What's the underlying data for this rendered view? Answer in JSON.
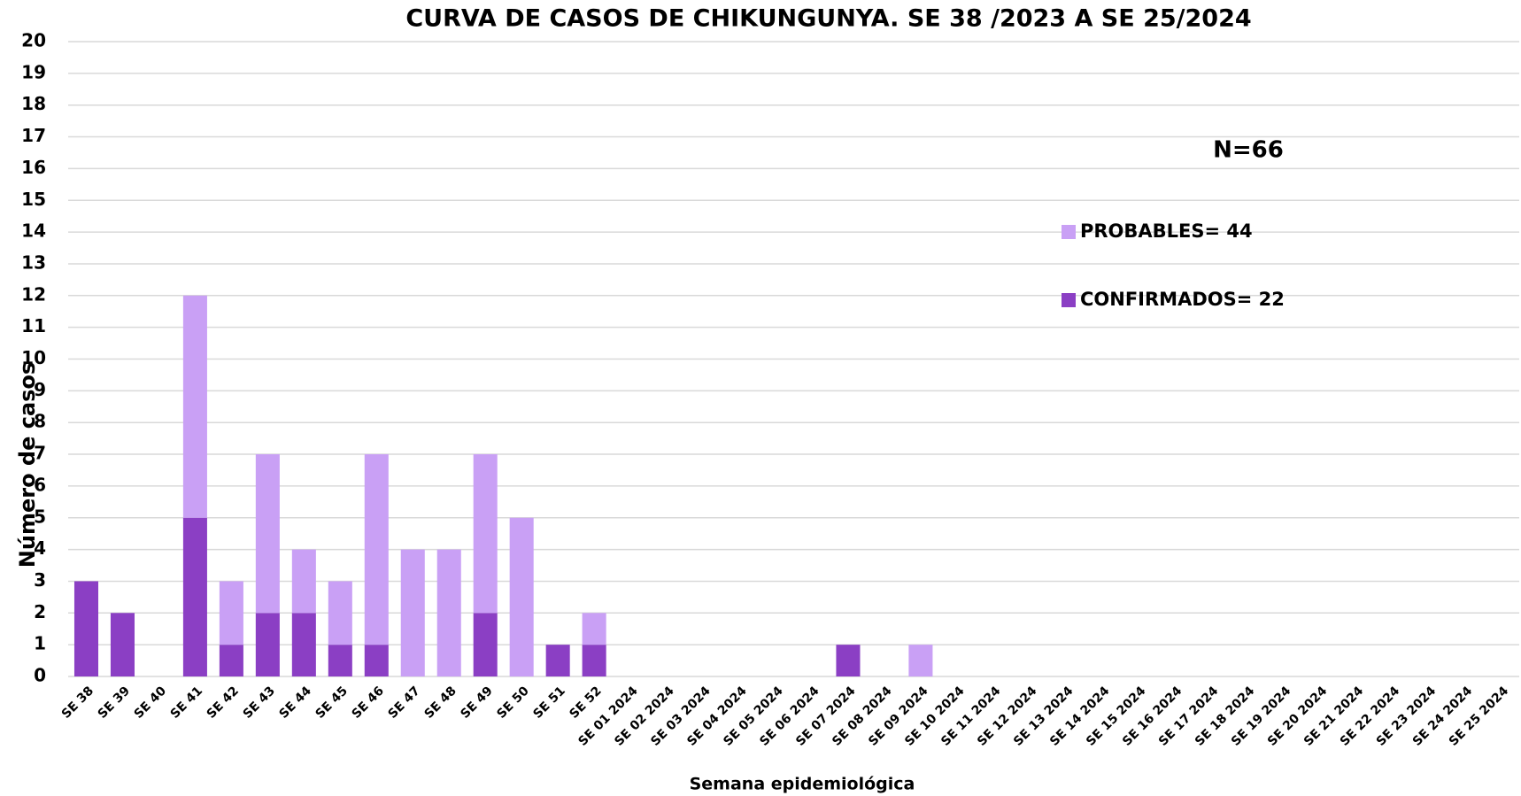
{
  "chart_data": {
    "type": "stacked-bar",
    "title": "CURVA DE CASOS DE CHIKUNGUNYA. SE 38 /2023 A SE 25/2024",
    "x_label": "Semana epidemiológica",
    "y_label": "Número de casos",
    "annotation": "N=66",
    "categories": [
      "SE 38",
      "SE 39",
      "SE 40",
      "SE 41",
      "SE 42",
      "SE 43",
      "SE 44",
      "SE 45",
      "SE 46",
      "SE 47",
      "SE 48",
      "SE 49",
      "SE 50",
      "SE 51",
      "SE 52",
      "SE 01 2024",
      "SE 02 2024",
      "SE 03 2024",
      "SE 04 2024",
      "SE 05 2024",
      "SE 06 2024",
      "SE 07 2024",
      "SE 08 2024",
      "SE 09 2024",
      "SE 10 2024",
      "SE 11 2024",
      "SE 12 2024",
      "SE 13 2024",
      "SE 14 2024",
      "SE 15 2024",
      "SE 16 2024",
      "SE 17 2024",
      "SE 18 2024",
      "SE 19 2024",
      "SE 20 2024",
      "SE 21 2024",
      "SE 22 2024",
      "SE 23 2024",
      "SE 24 2024",
      "SE 25 2024"
    ],
    "series": [
      {
        "name": "CONFIRMADOS= 22",
        "color": "#8b3fc4",
        "values": [
          3,
          2,
          0,
          5,
          1,
          2,
          2,
          1,
          1,
          0,
          0,
          2,
          0,
          1,
          1,
          0,
          0,
          0,
          0,
          0,
          0,
          1,
          0,
          0,
          0,
          0,
          0,
          0,
          0,
          0,
          0,
          0,
          0,
          0,
          0,
          0,
          0,
          0,
          0,
          0
        ]
      },
      {
        "name": "PROBABLES= 44",
        "color": "#c9a0f5",
        "values": [
          0,
          0,
          0,
          7,
          2,
          5,
          2,
          2,
          6,
          4,
          4,
          5,
          5,
          0,
          1,
          0,
          0,
          0,
          0,
          0,
          0,
          0,
          0,
          1,
          0,
          0,
          0,
          0,
          0,
          0,
          0,
          0,
          0,
          0,
          0,
          0,
          0,
          0,
          0,
          0
        ]
      }
    ],
    "ylim": [
      0,
      20
    ],
    "yticks": [
      0,
      1,
      2,
      3,
      4,
      5,
      6,
      7,
      8,
      9,
      10,
      11,
      12,
      13,
      14,
      15,
      16,
      17,
      18,
      19,
      20
    ],
    "grid": true
  }
}
